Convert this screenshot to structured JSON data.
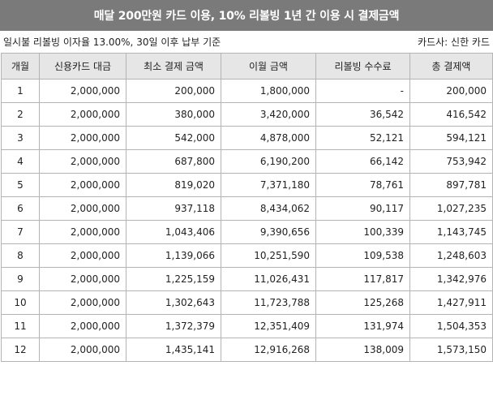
{
  "title": "매달 200만원 카드 이용, 10% 리볼빙 1년 간 이용 시 결제금액",
  "subtitle_left": "일시불 리볼빙 이자율 13.00%, 30일 이후 납부 기준",
  "subtitle_right": "카드사: 신한 카드",
  "columns": [
    "개월",
    "신용카드 대금",
    "최소 결제 금액",
    "이월 금액",
    "리볼빙 수수료",
    "총 결제액"
  ],
  "rows": [
    [
      "1",
      "2,000,000",
      "200,000",
      "1,800,000",
      "-",
      "200,000"
    ],
    [
      "2",
      "2,000,000",
      "380,000",
      "3,420,000",
      "36,542",
      "416,542"
    ],
    [
      "3",
      "2,000,000",
      "542,000",
      "4,878,000",
      "52,121",
      "594,121"
    ],
    [
      "4",
      "2,000,000",
      "687,800",
      "6,190,200",
      "66,142",
      "753,942"
    ],
    [
      "5",
      "2,000,000",
      "819,020",
      "7,371,180",
      "78,761",
      "897,781"
    ],
    [
      "6",
      "2,000,000",
      "937,118",
      "8,434,062",
      "90,117",
      "1,027,235"
    ],
    [
      "7",
      "2,000,000",
      "1,043,406",
      "9,390,656",
      "100,339",
      "1,143,745"
    ],
    [
      "8",
      "2,000,000",
      "1,139,066",
      "10,251,590",
      "109,538",
      "1,248,603"
    ],
    [
      "9",
      "2,000,000",
      "1,225,159",
      "11,026,431",
      "117,817",
      "1,342,976"
    ],
    [
      "10",
      "2,000,000",
      "1,302,643",
      "11,723,788",
      "125,268",
      "1,427,911"
    ],
    [
      "11",
      "2,000,000",
      "1,372,379",
      "12,351,409",
      "131,974",
      "1,504,353"
    ],
    [
      "12",
      "2,000,000",
      "1,435,141",
      "12,916,268",
      "138,009",
      "1,573,150"
    ]
  ]
}
